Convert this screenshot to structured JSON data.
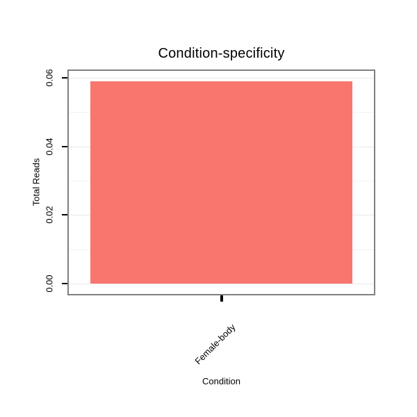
{
  "chart_data": {
    "type": "bar",
    "title": "Condition-specificity",
    "xlabel": "Condition",
    "ylabel": "Total Reads",
    "categories": [
      "Female-body"
    ],
    "values": [
      0.059
    ],
    "ylim": [
      -0.003,
      0.062
    ],
    "yticks": [
      {
        "value": 0.0,
        "label": "0.00"
      },
      {
        "value": 0.02,
        "label": "0.02"
      },
      {
        "value": 0.04,
        "label": "0.04"
      },
      {
        "value": 0.06,
        "label": "0.06"
      }
    ],
    "minor_gridlines": [
      0.01,
      0.03,
      0.05
    ],
    "bar_color": "#F8766D",
    "panel_border_color": "#7f7f7f",
    "grid": "on",
    "legend": "none"
  }
}
